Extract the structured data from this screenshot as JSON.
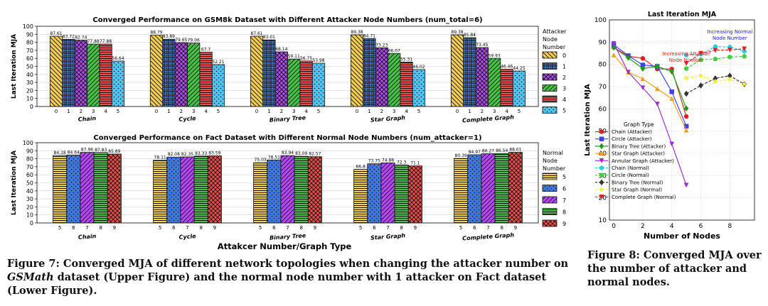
{
  "fig7": {
    "caption_label": "Figure 7:",
    "caption_pre": "Converged MJA of different network topologies when changing the attacker number on",
    "caption_em": "GSMath",
    "caption_post": "dataset (Upper Figure) and the normal node number with 1 attacker on Fact dataset (Lower Figure).",
    "xlabel": "Attakcer Number/Graph Type"
  },
  "fig8": {
    "caption": "Figure 8: Converged MJA over the number of attacker and normal nodes."
  },
  "chart_data": [
    {
      "type": "bar",
      "title": "Converged Performance on GSM8k Dataset with Different Attacker Node Numbers (num_total=6)",
      "ylabel": "Last Iteration MJA",
      "ylim": [
        0,
        100
      ],
      "yticks": [
        0,
        10,
        20,
        30,
        40,
        50,
        60,
        70,
        80,
        90,
        100
      ],
      "categories": [
        "Chain",
        "Cycle",
        "Binary Tree",
        "Star Graph",
        "Complete Graph"
      ],
      "legend_title": [
        "Attacker",
        "Node",
        "Number"
      ],
      "legend_position": "right",
      "series": [
        {
          "name": "0",
          "color": "#f5d04a",
          "pattern": "back-diagonal",
          "values": [
            87.61,
            88.79,
            87.61,
            89.38,
            89.38
          ]
        },
        {
          "name": "1",
          "color": "#3f78d8",
          "pattern": "grid",
          "values": [
            83.72,
            83.89,
            83.01,
            84.71,
            85.84
          ]
        },
        {
          "name": "2",
          "color": "#b14cf0",
          "pattern": "cross-hatch",
          "values": [
            82.74,
            79.65,
            68.14,
            73.23,
            73.45
          ]
        },
        {
          "name": "3",
          "color": "#4dbf4d",
          "pattern": "forward-diagonal",
          "values": [
            77.88,
            79.06,
            59.11,
            66.07,
            59.93
          ]
        },
        {
          "name": "4",
          "color": "#ee4d4d",
          "pattern": "horizontal",
          "values": [
            77.88,
            67.7,
            56.75,
            55.31,
            46.46
          ]
        },
        {
          "name": "5",
          "color": "#53c3f2",
          "pattern": "dots",
          "values": [
            56.64,
            52.21,
            53.98,
            46.02,
            44.25
          ]
        }
      ],
      "value_labels": [
        [
          "87.61",
          "83.72",
          "82.74",
          "77.88",
          "77.88",
          "56.64"
        ],
        [
          "88.79",
          "83.89",
          "79.65",
          "79.06",
          "67.7",
          "52.21"
        ],
        [
          "87.61",
          "83.01",
          "68.14",
          "59.11",
          "56.75",
          "53.98"
        ],
        [
          "89.38",
          "84.71",
          "73.23",
          "66.07",
          "55.31",
          "46.02"
        ],
        [
          "89.38",
          "85.84",
          "73.45",
          "59.93",
          "46.46",
          "44.25"
        ]
      ]
    },
    {
      "type": "bar",
      "title": "Converged Performance on Fact Dataset with Different Normal Node Numbers (num_attacker=1)",
      "ylabel": "Last Iteration MJA",
      "ylim": [
        0,
        100
      ],
      "yticks": [
        0,
        10,
        20,
        30,
        40,
        50,
        60,
        70,
        80,
        90,
        100
      ],
      "categories": [
        "Chain",
        "Cycle",
        "Binary Tree",
        "Star Graph",
        "Complete Graph"
      ],
      "legend_title": [
        "Normal",
        "Node",
        "Number"
      ],
      "legend_position": "right",
      "series": [
        {
          "name": "5",
          "color": "#f5d04a",
          "pattern": "horizontal",
          "values": [
            84.18,
            78.11,
            75.03,
            66.8,
            80.39
          ]
        },
        {
          "name": "6",
          "color": "#3f78d8",
          "pattern": "dots",
          "values": [
            84.64,
            82.08,
            78.51,
            73.75,
            84.97
          ]
        },
        {
          "name": "7",
          "color": "#b14cf0",
          "pattern": "forward-diagonal",
          "values": [
            87.96,
            82.35,
            83.94,
            74.88,
            86.27
          ]
        },
        {
          "name": "8",
          "color": "#4dbf4d",
          "pattern": "horizontal",
          "values": [
            87.83,
            83.33,
            83.09,
            72.3,
            86.54
          ]
        },
        {
          "name": "9",
          "color": "#ee4d4d",
          "pattern": "cross-hatch",
          "values": [
            85.89,
            83.59,
            82.57,
            71.1,
            88.01
          ]
        }
      ],
      "value_labels": [
        [
          "84.18",
          "84.64",
          "87.96",
          "87.83",
          "85.89"
        ],
        [
          "78.11",
          "82.08",
          "82.35",
          "83.33",
          "83.59"
        ],
        [
          "75.03",
          "78.51",
          "83.94",
          "83.09",
          "82.57"
        ],
        [
          "66.8",
          "73.75",
          "74.88",
          "72.3",
          "71.1"
        ],
        [
          "80.39",
          "84.97",
          "86.27",
          "86.54",
          "88.01"
        ]
      ]
    },
    {
      "type": "line",
      "title": "Last Iteration MJA",
      "xlabel": "Number of Nodes",
      "ylabel": "Last Iteration MJA",
      "xlim": [
        -0.3,
        9.7
      ],
      "ylim": [
        10,
        100
      ],
      "xticks": [
        0,
        2,
        4,
        6,
        8
      ],
      "yticks": [
        10,
        20,
        30,
        40,
        50,
        60,
        70,
        80,
        90,
        100
      ],
      "grid": true,
      "legend_title": "Graph Type",
      "legend_position": "lower-left",
      "annotations": [
        {
          "text": [
            "Increasing Attacker",
            "Node Number"
          ],
          "color": "#e02020",
          "x": 5,
          "y": 84
        },
        {
          "text": [
            "Increasing Normal",
            "Node Number"
          ],
          "color": "#2020d0",
          "x": 8,
          "y": 94
        }
      ],
      "series": [
        {
          "name": "Chain (Attacker)",
          "color": "#e02020",
          "style": "solid",
          "marker": "circle",
          "x": [
            0,
            1,
            2,
            3,
            4,
            5
          ],
          "y": [
            87.6,
            83.7,
            82.7,
            77.9,
            77.9,
            56.6
          ]
        },
        {
          "name": "Circle (Attacker)",
          "color": "#4040ee",
          "style": "solid",
          "marker": "square",
          "x": [
            0,
            1,
            2,
            3,
            4,
            5
          ],
          "y": [
            88.8,
            83.9,
            79.7,
            79.1,
            67.7,
            52.2
          ]
        },
        {
          "name": "Binary Tree (Attacker)",
          "color": "#1e9a1e",
          "style": "solid",
          "marker": "diamond",
          "x": [
            0,
            1,
            2,
            3,
            4,
            5
          ],
          "y": [
            87.6,
            83.0,
            78.1,
            79.1,
            76.8,
            60.2
          ]
        },
        {
          "name": "Star Graph (Attacker)",
          "color": "#f0a020",
          "style": "solid",
          "marker": "triangle",
          "x": [
            0,
            1,
            2,
            3,
            4,
            5
          ],
          "y": [
            84.2,
            76.5,
            73.5,
            69.0,
            64.6,
            50.4
          ]
        },
        {
          "name": "Annular Graph (Attacker)",
          "color": "#9a30c8",
          "style": "solid",
          "marker": "triangle-down",
          "x": [
            0,
            1,
            2,
            3,
            4,
            5
          ],
          "y": [
            89.4,
            76.5,
            69.5,
            62.2,
            44.2,
            25.7
          ]
        },
        {
          "name": "Chain (Normal)",
          "color": "#30d0d0",
          "style": "dashed",
          "marker": "circle",
          "x": [
            5,
            6,
            7,
            8,
            9
          ],
          "y": [
            84.2,
            84.6,
            88.0,
            87.8,
            85.9
          ]
        },
        {
          "name": "Circle (Normal)",
          "color": "#40d040",
          "style": "dashed",
          "marker": "circle",
          "x": [
            5,
            6,
            7,
            8,
            9
          ],
          "y": [
            78.1,
            82.1,
            82.4,
            83.3,
            83.6
          ]
        },
        {
          "name": "Binary Tree (Normal)",
          "color": "#333333",
          "style": "dashed",
          "marker": "diamond",
          "x": [
            5,
            6,
            7,
            8,
            9
          ],
          "y": [
            66.8,
            70.5,
            73.7,
            74.9,
            71.1
          ]
        },
        {
          "name": "Star Graph (Normal)",
          "color": "#f0f040",
          "style": "dashed",
          "marker": "star",
          "x": [
            5,
            6,
            7,
            8,
            9
          ],
          "y": [
            73.8,
            74.9,
            72.3,
            73.2,
            71.1
          ]
        },
        {
          "name": "Complete Graph (Normal)",
          "color": "#e02020",
          "style": "dashed",
          "marker": "triangle-down",
          "x": [
            5,
            6,
            7,
            8,
            9
          ],
          "y": [
            80.4,
            85.0,
            86.3,
            86.5,
            87.0
          ]
        }
      ]
    }
  ]
}
